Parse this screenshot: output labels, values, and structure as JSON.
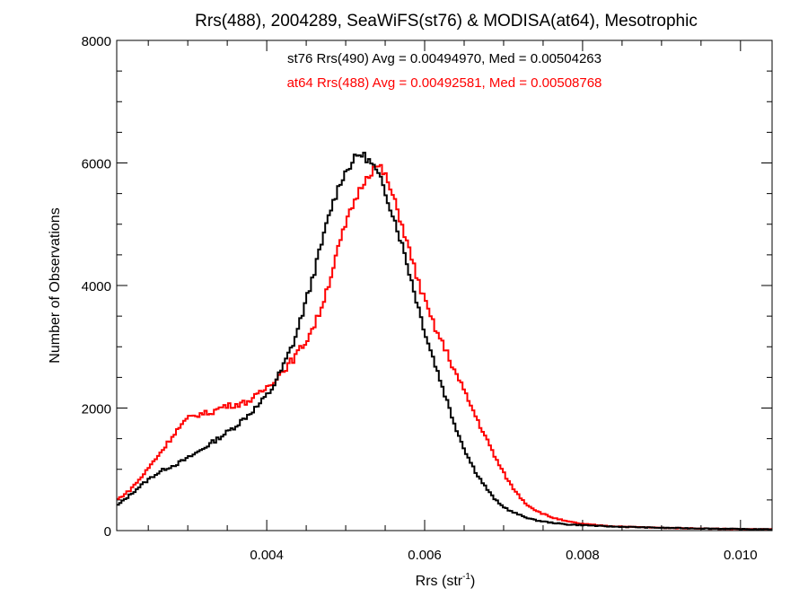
{
  "chart_data": {
    "type": "line",
    "title": "Rrs(488), 2004289, SeaWiFS(st76) & MODISA(at64), Mesotrophic",
    "xlabel_base": "Rrs (str",
    "xlabel_sup": "-1",
    "xlabel_close": ")",
    "ylabel": "Number of Observations",
    "xlim": [
      0.0021,
      0.0104
    ],
    "ylim": [
      0,
      8000
    ],
    "xticks": [
      0.004,
      0.006,
      0.008,
      0.01
    ],
    "xtick_labels": [
      "0.004",
      "0.006",
      "0.008",
      "0.010"
    ],
    "yticks": [
      0,
      2000,
      4000,
      6000,
      8000
    ],
    "ytick_labels": [
      "0",
      "2000",
      "4000",
      "6000",
      "8000"
    ],
    "grid": false,
    "series": [
      {
        "name": "st76 Rrs(490)",
        "legend": "st76 Rrs(490) Avg = 0.00494970, Med = 0.00504263",
        "color": "#000000",
        "points": [
          [
            0.0021,
            400
          ],
          [
            0.00225,
            560
          ],
          [
            0.0024,
            730
          ],
          [
            0.00255,
            880
          ],
          [
            0.0027,
            1000
          ],
          [
            0.00285,
            1080
          ],
          [
            0.003,
            1180
          ],
          [
            0.00315,
            1300
          ],
          [
            0.0033,
            1430
          ],
          [
            0.00345,
            1560
          ],
          [
            0.0036,
            1700
          ],
          [
            0.00375,
            1870
          ],
          [
            0.0039,
            2050
          ],
          [
            0.00405,
            2280
          ],
          [
            0.0042,
            2650
          ],
          [
            0.00435,
            3100
          ],
          [
            0.0045,
            3750
          ],
          [
            0.00465,
            4450
          ],
          [
            0.0048,
            5200
          ],
          [
            0.00495,
            5750
          ],
          [
            0.0051,
            6050
          ],
          [
            0.00518,
            6150
          ],
          [
            0.00525,
            6100
          ],
          [
            0.00535,
            5950
          ],
          [
            0.00545,
            5700
          ],
          [
            0.00555,
            5350
          ],
          [
            0.00565,
            4950
          ],
          [
            0.00575,
            4500
          ],
          [
            0.00585,
            4000
          ],
          [
            0.00595,
            3500
          ],
          [
            0.00605,
            3050
          ],
          [
            0.00615,
            2650
          ],
          [
            0.00625,
            2250
          ],
          [
            0.00635,
            1850
          ],
          [
            0.00645,
            1500
          ],
          [
            0.00655,
            1200
          ],
          [
            0.00665,
            950
          ],
          [
            0.00675,
            750
          ],
          [
            0.00685,
            570
          ],
          [
            0.00695,
            430
          ],
          [
            0.0071,
            310
          ],
          [
            0.00725,
            230
          ],
          [
            0.0074,
            170
          ],
          [
            0.0076,
            130
          ],
          [
            0.0078,
            100
          ],
          [
            0.008,
            90
          ],
          [
            0.0082,
            75
          ],
          [
            0.0084,
            65
          ],
          [
            0.0087,
            55
          ],
          [
            0.009,
            45
          ],
          [
            0.0095,
            35
          ],
          [
            0.01,
            25
          ],
          [
            0.0104,
            20
          ]
        ]
      },
      {
        "name": "at64 Rrs(488)",
        "legend": "at64 Rrs(488) Avg = 0.00492581, Med = 0.00508768",
        "color": "#ff0000",
        "points": [
          [
            0.0021,
            500
          ],
          [
            0.00225,
            640
          ],
          [
            0.0024,
            850
          ],
          [
            0.00255,
            1100
          ],
          [
            0.0027,
            1350
          ],
          [
            0.00285,
            1620
          ],
          [
            0.003,
            1830
          ],
          [
            0.00315,
            1900
          ],
          [
            0.0033,
            1930
          ],
          [
            0.00345,
            2030
          ],
          [
            0.0036,
            2050
          ],
          [
            0.00375,
            2100
          ],
          [
            0.0039,
            2220
          ],
          [
            0.00405,
            2400
          ],
          [
            0.0042,
            2600
          ],
          [
            0.00435,
            2820
          ],
          [
            0.0045,
            3100
          ],
          [
            0.00465,
            3480
          ],
          [
            0.0048,
            4100
          ],
          [
            0.00495,
            4800
          ],
          [
            0.0051,
            5350
          ],
          [
            0.00525,
            5750
          ],
          [
            0.00535,
            5900
          ],
          [
            0.00542,
            5950
          ],
          [
            0.0055,
            5800
          ],
          [
            0.0056,
            5450
          ],
          [
            0.0057,
            5050
          ],
          [
            0.0058,
            4600
          ],
          [
            0.0059,
            4150
          ],
          [
            0.006,
            3750
          ],
          [
            0.0061,
            3400
          ],
          [
            0.0062,
            3120
          ],
          [
            0.0063,
            2850
          ],
          [
            0.0064,
            2550
          ],
          [
            0.0065,
            2280
          ],
          [
            0.0066,
            2000
          ],
          [
            0.0067,
            1720
          ],
          [
            0.0068,
            1450
          ],
          [
            0.0069,
            1180
          ],
          [
            0.007,
            940
          ],
          [
            0.0071,
            730
          ],
          [
            0.0072,
            560
          ],
          [
            0.0073,
            420
          ],
          [
            0.00745,
            300
          ],
          [
            0.0076,
            220
          ],
          [
            0.0078,
            150
          ],
          [
            0.008,
            110
          ],
          [
            0.0082,
            85
          ],
          [
            0.0085,
            65
          ],
          [
            0.009,
            45
          ],
          [
            0.0095,
            35
          ],
          [
            0.01,
            25
          ],
          [
            0.0104,
            20
          ]
        ]
      }
    ]
  }
}
